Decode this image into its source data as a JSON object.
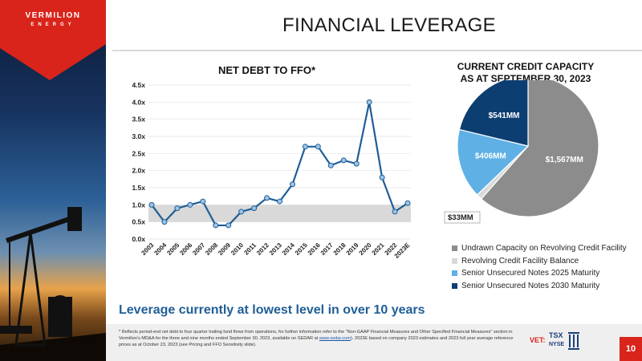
{
  "brand": {
    "name": "VERMILION",
    "sub": "ENERGY"
  },
  "slide": {
    "title": "FINANCIAL LEVERAGE",
    "tagline": "Leverage currently at lowest level in over 10 years",
    "page_number": "10"
  },
  "footnote": {
    "text_1": "* Reflects period-end net debt to four quarter trailing fund flows from operations, for further information refer to the \"Non-GAAP Financial Measures and Other Specified Financial Measures\" section in Vermilion's MD&A for the three and nine months ended September 30, 2023, available on SEDAR at ",
    "link": "www.sedar.com",
    "text_2": "). 2023E based on company 2023 estimates and 2023 full year average reference prices as at October 23, 2023 (see Pricing and FFO Sensitivity slide)."
  },
  "exchanges": {
    "ticker": "VET:",
    "tsx": "TSX",
    "nyse": "NYSE"
  },
  "chart_data": [
    {
      "type": "line",
      "title": "NET DEBT TO FFO*",
      "x": [
        "2003",
        "2004",
        "2005",
        "2006",
        "2007",
        "2008",
        "2009",
        "2010",
        "2011",
        "2012",
        "2013",
        "2014",
        "2015",
        "2016",
        "2017",
        "2018",
        "2019",
        "2020",
        "2021",
        "2022",
        "2023E"
      ],
      "y": [
        1.0,
        0.5,
        0.9,
        1.0,
        1.1,
        0.4,
        0.4,
        0.8,
        0.9,
        1.2,
        1.1,
        1.6,
        2.7,
        2.7,
        2.15,
        2.3,
        2.2,
        4.0,
        1.8,
        0.8,
        1.05
      ],
      "y_tick_labels": [
        "0.0x",
        "0.5x",
        "1.0x",
        "1.5x",
        "2.0x",
        "2.5x",
        "3.0x",
        "3.5x",
        "4.0x",
        "4.5x"
      ],
      "ylim": [
        0,
        4.5
      ],
      "band": [
        0.5,
        1.0
      ],
      "grid": true,
      "colors": {
        "line": "#1f5e96",
        "band": "#d9d9d9"
      }
    },
    {
      "type": "pie",
      "title": "CURRENT CREDIT CAPACITY",
      "subtitle": "AS AT SEPTEMBER 30, 2023",
      "slices": [
        {
          "label": "Undrawn Capacity on Revolving Credit Facility",
          "value": 1567,
          "data_label": "$1,567MM",
          "color": "#8c8c8c"
        },
        {
          "label": "Revolving Credit Facility Balance",
          "value": 33,
          "data_label": "$33MM",
          "color": "#d9d9d9"
        },
        {
          "label": "Senior Unsecured Notes 2025 Maturity",
          "value": 406,
          "data_label": "$406MM",
          "color": "#5fb0e4"
        },
        {
          "label": "Senior Unsecured Notes 2030 Maturity",
          "value": 541,
          "data_label": "$541MM",
          "color": "#0d3e72"
        }
      ],
      "legend_position": "bottom"
    }
  ]
}
